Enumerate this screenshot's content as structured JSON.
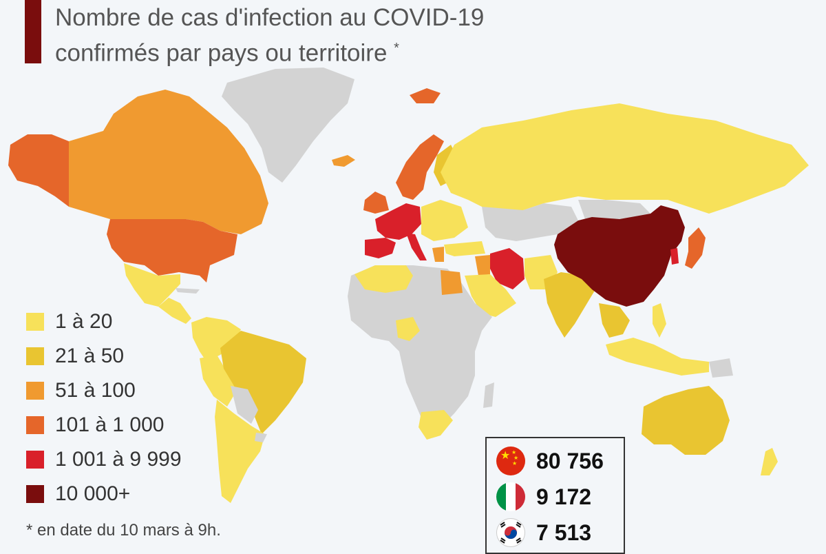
{
  "title": {
    "line1": "Nombre de cas d'infection au COVID-19",
    "line2": "confirmés par pays ou territoire",
    "asterisk": "*"
  },
  "colors": {
    "background": "#f3f6f9",
    "no_data": "#d3d3d3",
    "title_bar": "#7a0d0d"
  },
  "legend": [
    {
      "label": "1 à 20",
      "color": "#f7e15a"
    },
    {
      "label": "21 à 50",
      "color": "#e9c531"
    },
    {
      "label": "51 à 100",
      "color": "#f09a30"
    },
    {
      "label": "101 à 1 000",
      "color": "#e5662a"
    },
    {
      "label": "1 001 à 9 999",
      "color": "#d9202a"
    },
    {
      "label": "10 000+",
      "color": "#7a0d0d"
    }
  ],
  "footnote": "* en date du 10 mars à 9h.",
  "top_countries": [
    {
      "flag": "china-flag-icon",
      "value": "80 756"
    },
    {
      "flag": "italy-flag-icon",
      "value": "9 172"
    },
    {
      "flag": "south-korea-flag-icon",
      "value": "7 513"
    }
  ]
}
